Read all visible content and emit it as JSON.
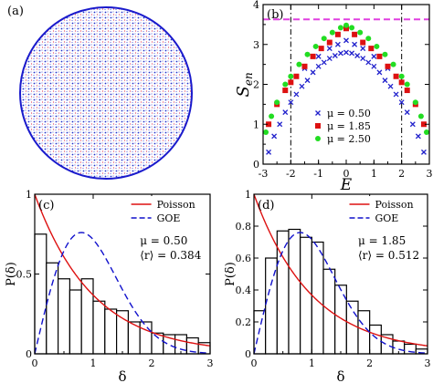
{
  "panel_a": {
    "label": "(a)"
  },
  "chart_data": [
    {
      "panel": "(b)",
      "type": "scatter",
      "xlabel": "E",
      "ylabel": "S",
      "ylabel_sub": "en",
      "xlim": [
        -3,
        3
      ],
      "ylim": [
        0,
        4
      ],
      "xticks": [
        -3,
        -2,
        -1,
        0,
        1,
        2,
        3
      ],
      "yticks": [
        0,
        1,
        2,
        3,
        4
      ],
      "reference_lines": {
        "horizontal_y": 3.63,
        "vertical_x": [
          -2,
          2
        ]
      },
      "series": [
        {
          "name": "μ = 0.50",
          "marker": "x",
          "color": "#2222cc",
          "points": [
            [
              -2.8,
              0.3
            ],
            [
              -2.6,
              0.7
            ],
            [
              -2.4,
              1.0
            ],
            [
              -2.2,
              1.3
            ],
            [
              -2.0,
              1.55
            ],
            [
              -1.8,
              1.75
            ],
            [
              -1.6,
              1.95
            ],
            [
              -1.4,
              2.1
            ],
            [
              -1.2,
              2.3
            ],
            [
              -1.0,
              2.45
            ],
            [
              -0.8,
              2.55
            ],
            [
              -0.6,
              2.65
            ],
            [
              -0.4,
              2.72
            ],
            [
              -0.2,
              2.78
            ],
            [
              0.0,
              2.8
            ],
            [
              0.2,
              2.78
            ],
            [
              0.4,
              2.72
            ],
            [
              0.6,
              2.65
            ],
            [
              0.8,
              2.55
            ],
            [
              1.0,
              2.45
            ],
            [
              1.2,
              2.3
            ],
            [
              1.4,
              2.1
            ],
            [
              1.6,
              1.95
            ],
            [
              1.8,
              1.75
            ],
            [
              2.0,
              1.55
            ],
            [
              2.2,
              1.3
            ],
            [
              2.4,
              1.0
            ],
            [
              2.6,
              0.7
            ],
            [
              2.8,
              0.3
            ],
            [
              -0.3,
              3.0
            ],
            [
              0.0,
              3.1
            ],
            [
              0.3,
              3.0
            ],
            [
              -0.6,
              2.9
            ],
            [
              0.6,
              2.9
            ],
            [
              -1.0,
              2.7
            ],
            [
              1.0,
              2.7
            ],
            [
              -1.5,
              2.4
            ],
            [
              1.5,
              2.4
            ]
          ]
        },
        {
          "name": "μ = 1.85",
          "marker": "square",
          "color": "#dd1111",
          "points": [
            [
              -2.8,
              1.0
            ],
            [
              -2.5,
              1.5
            ],
            [
              -2.2,
              1.85
            ],
            [
              -2.0,
              2.05
            ],
            [
              -1.8,
              2.2
            ],
            [
              -1.5,
              2.45
            ],
            [
              -1.2,
              2.7
            ],
            [
              -0.9,
              2.9
            ],
            [
              -0.6,
              3.05
            ],
            [
              -0.3,
              3.25
            ],
            [
              0.0,
              3.4
            ],
            [
              0.3,
              3.25
            ],
            [
              0.6,
              3.05
            ],
            [
              0.9,
              2.9
            ],
            [
              1.2,
              2.7
            ],
            [
              1.5,
              2.45
            ],
            [
              1.8,
              2.2
            ],
            [
              2.0,
              2.05
            ],
            [
              2.2,
              1.85
            ],
            [
              2.5,
              1.5
            ],
            [
              2.8,
              1.0
            ]
          ]
        },
        {
          "name": "μ = 2.50",
          "marker": "circle",
          "color": "#22dd22",
          "points": [
            [
              -2.9,
              0.8
            ],
            [
              -2.7,
              1.2
            ],
            [
              -2.5,
              1.55
            ],
            [
              -2.2,
              2.0
            ],
            [
              -2.0,
              2.2
            ],
            [
              -1.7,
              2.5
            ],
            [
              -1.4,
              2.75
            ],
            [
              -1.1,
              2.95
            ],
            [
              -0.8,
              3.15
            ],
            [
              -0.5,
              3.3
            ],
            [
              -0.2,
              3.42
            ],
            [
              0.0,
              3.48
            ],
            [
              0.2,
              3.42
            ],
            [
              0.5,
              3.3
            ],
            [
              0.8,
              3.15
            ],
            [
              1.1,
              2.95
            ],
            [
              1.4,
              2.75
            ],
            [
              1.7,
              2.5
            ],
            [
              2.0,
              2.2
            ],
            [
              2.2,
              2.0
            ],
            [
              2.5,
              1.55
            ],
            [
              2.7,
              1.2
            ],
            [
              2.9,
              0.8
            ]
          ]
        }
      ]
    },
    {
      "panel": "(c)",
      "type": "bar",
      "xlabel": "δ",
      "ylabel": "P(δ)",
      "xlim": [
        0,
        3
      ],
      "ylim": [
        0,
        1
      ],
      "xticks": [
        0,
        1,
        2,
        3
      ],
      "yticks": [
        0,
        0.5,
        1
      ],
      "ytick_labels": [
        "0",
        "0.5",
        "1"
      ],
      "bin_width": 0.2,
      "values": [
        0.75,
        0.57,
        0.47,
        0.4,
        0.47,
        0.33,
        0.28,
        0.27,
        0.2,
        0.2,
        0.13,
        0.12,
        0.12,
        0.1,
        0.07
      ],
      "curves": [
        {
          "name": "Poisson",
          "function": "exp(-x)",
          "color": "#dd1111",
          "style": "solid"
        },
        {
          "name": "GOE",
          "function": "(pi/2) x exp(-pi x^2/4)",
          "color": "#1111cc",
          "style": "dashed"
        }
      ],
      "annotation": [
        "μ = 0.50",
        "⟨r⟩ = 0.384"
      ]
    },
    {
      "panel": "(d)",
      "type": "bar",
      "xlabel": "δ",
      "ylabel": "P(δ)",
      "xlim": [
        0,
        3
      ],
      "ylim": [
        0,
        1
      ],
      "xticks": [
        0,
        1,
        2,
        3
      ],
      "yticks": [
        0,
        0.2,
        0.4,
        0.6,
        0.8,
        1
      ],
      "ytick_labels": [
        "0",
        "0.2",
        "0.4",
        "0.6",
        "0.8",
        "1"
      ],
      "bin_width": 0.2,
      "values": [
        0.27,
        0.6,
        0.77,
        0.78,
        0.73,
        0.7,
        0.53,
        0.43,
        0.33,
        0.27,
        0.18,
        0.12,
        0.08,
        0.06,
        0.03
      ],
      "curves": [
        {
          "name": "Poisson",
          "function": "exp(-x)",
          "color": "#dd1111",
          "style": "solid"
        },
        {
          "name": "GOE",
          "function": "(pi/2) x exp(-pi x^2/4)",
          "color": "#1111cc",
          "style": "dashed"
        }
      ],
      "annotation": [
        "μ = 1.85",
        "⟨r⟩ = 0.512"
      ]
    }
  ]
}
